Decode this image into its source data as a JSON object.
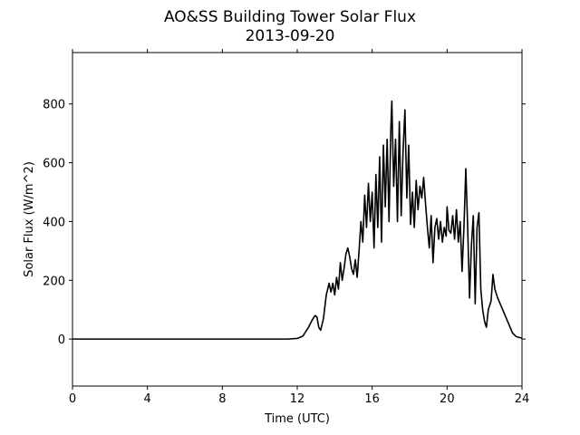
{
  "chart_data": {
    "type": "line",
    "title": "AO&SS Building Tower Solar Flux",
    "subtitle": "2013-09-20",
    "x_label": "Time (UTC)",
    "y_label": "Solar Flux (W/m^2)",
    "xlim": [
      0,
      24
    ],
    "xticks": [
      0,
      4,
      8,
      12,
      16,
      20,
      24
    ],
    "ylim": [
      -160,
      975
    ],
    "yticks": [
      0,
      200,
      400,
      600,
      800
    ],
    "series": [
      {
        "color": "#000000",
        "x": [
          0,
          11.5,
          12,
          12.3,
          12.6,
          12.8,
          12.95,
          13.05,
          13.15,
          13.25,
          13.4,
          13.55,
          13.7,
          13.8,
          13.9,
          14.0,
          14.1,
          14.2,
          14.3,
          14.4,
          14.5,
          14.6,
          14.7,
          14.8,
          14.9,
          15.0,
          15.1,
          15.2,
          15.3,
          15.4,
          15.5,
          15.6,
          15.7,
          15.8,
          15.9,
          16.0,
          16.1,
          16.2,
          16.3,
          16.4,
          16.5,
          16.6,
          16.7,
          16.8,
          16.9,
          17.0,
          17.05,
          17.15,
          17.25,
          17.35,
          17.45,
          17.55,
          17.65,
          17.75,
          17.85,
          17.95,
          18.05,
          18.15,
          18.25,
          18.35,
          18.45,
          18.55,
          18.65,
          18.75,
          18.85,
          18.95,
          19.05,
          19.15,
          19.25,
          19.35,
          19.45,
          19.55,
          19.65,
          19.75,
          19.85,
          19.95,
          20.0,
          20.1,
          20.2,
          20.3,
          20.4,
          20.5,
          20.6,
          20.7,
          20.8,
          20.9,
          21.0,
          21.1,
          21.2,
          21.3,
          21.4,
          21.5,
          21.6,
          21.7,
          21.8,
          21.9,
          22.0,
          22.1,
          22.2,
          22.35,
          22.45,
          22.55,
          22.7,
          22.9,
          23.1,
          23.3,
          23.5,
          23.7,
          24
        ],
        "values": [
          0,
          0,
          2,
          10,
          40,
          65,
          80,
          75,
          40,
          30,
          70,
          150,
          190,
          160,
          190,
          150,
          210,
          170,
          260,
          200,
          240,
          290,
          310,
          280,
          240,
          220,
          270,
          210,
          300,
          400,
          330,
          490,
          380,
          530,
          400,
          500,
          310,
          560,
          380,
          620,
          330,
          660,
          450,
          680,
          400,
          720,
          810,
          520,
          680,
          400,
          740,
          420,
          640,
          780,
          480,
          660,
          390,
          500,
          380,
          540,
          440,
          520,
          480,
          550,
          460,
          380,
          310,
          420,
          260,
          380,
          410,
          340,
          400,
          330,
          380,
          350,
          450,
          370,
          360,
          420,
          340,
          440,
          330,
          400,
          230,
          380,
          580,
          380,
          140,
          320,
          420,
          120,
          380,
          430,
          170,
          100,
          60,
          40,
          100,
          130,
          220,
          170,
          140,
          110,
          80,
          50,
          20,
          8,
          3
        ]
      }
    ]
  }
}
